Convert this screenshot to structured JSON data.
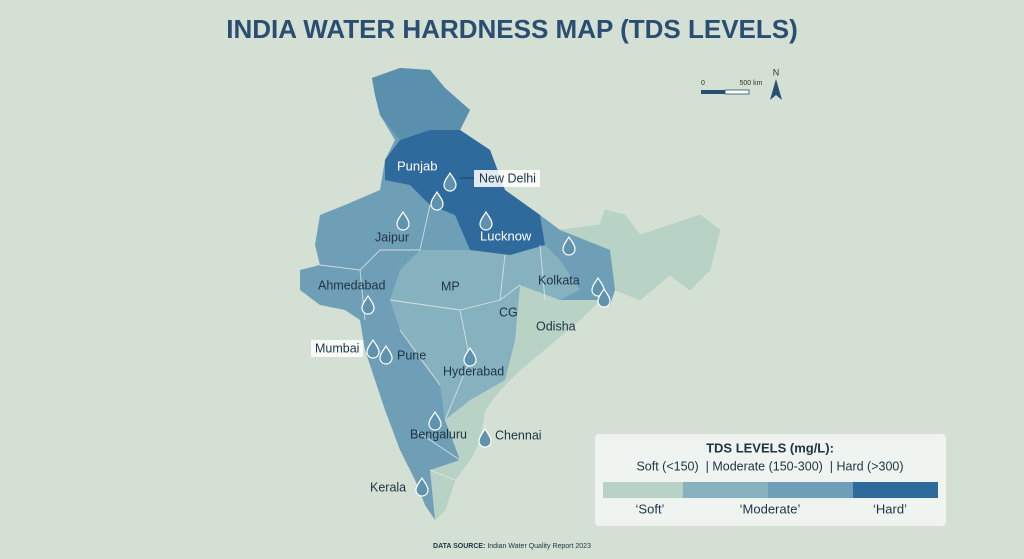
{
  "title": "INDIA WATER HARDNESS MAP (TDS LEVELS)",
  "scale_bar": {
    "start": "0",
    "end": "500 km"
  },
  "north": "N",
  "labels": [
    "Punjab",
    "New Delhi",
    "Jaipur",
    "Lucknow",
    "Ahmedabad",
    "MP",
    "Kolkata",
    "CG",
    "Odisha",
    "Mumbai",
    "Pune",
    "Hyderabad",
    "Bengaluru",
    "Chennai",
    "Kerala"
  ],
  "legend": {
    "title": "TDS LEVELS (mg/L):",
    "subtitle": "Soft (<150)  | Moderate (150-300)  | Hard (>300)",
    "items": [
      "‘Soft’",
      "‘Moderate’",
      "‘Hard’"
    ]
  },
  "source": {
    "label": "DATA SOURCE:",
    "text": "Indian Water Quality Report 2023"
  }
}
